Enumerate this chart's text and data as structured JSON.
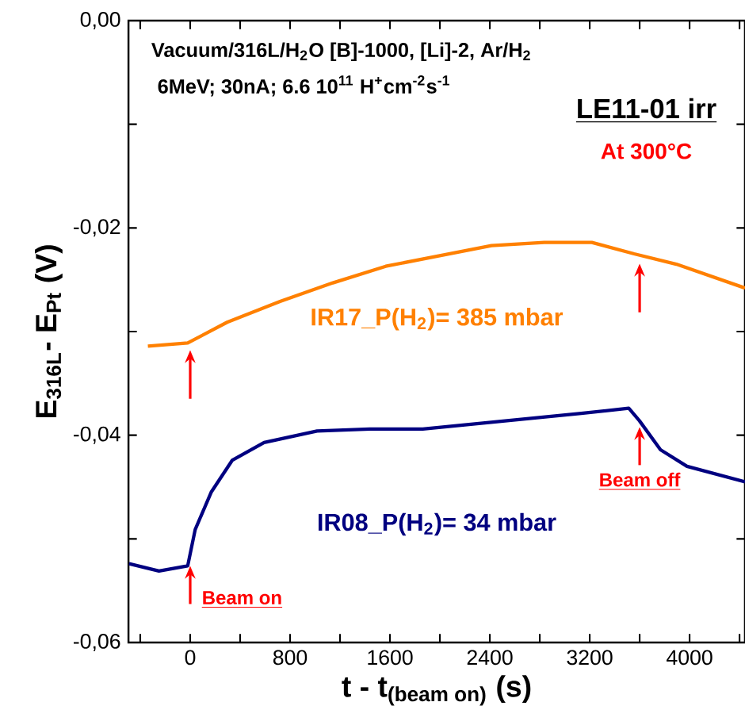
{
  "chart_data": {
    "type": "line",
    "title": "Vacuum/316L/H$_{2}$O [B]-1000, [Li]-2, Ar/H$_{2}$",
    "subtitle": "6MeV; 30nA; 6.6 10$^{11}$ H$^{+}$cm$^{-2}$s$^{-1}$",
    "xlabel": "\\text{t - t}_{\\text{(beam on)}}\\text{ (s)}",
    "ylabel": "E$_{316L}$- E$_{Pt}$ (V)",
    "annotations": [
      "LE11-01 irr",
      "At 300°C",
      {
        "text": "Beam on",
        "x": 0,
        "y": -0.052
      },
      {
        "text": "Beam off",
        "x": 3600,
        "y": -0.0386
      }
    ],
    "series": [
      {
        "name": "IR17_P(H$_{2}$)= 385 mbar",
        "color": "#ff8000",
        "x": [
          -339,
          -20,
          296,
          720,
          1143,
          1566,
          1990,
          2413,
          2836,
          3217,
          3556,
          3894,
          4444
        ],
        "values": [
          -0.0314,
          -0.0311,
          -0.0291,
          -0.0271,
          -0.0253,
          -0.0237,
          -0.0227,
          -0.0217,
          -0.0214,
          -0.0214,
          -0.0225,
          -0.0235,
          -0.0258
        ]
      },
      {
        "name": "IR08_P(H$_{2}$)= 34 mbar",
        "color": "#000080",
        "x": [
          -490,
          -250,
          -20,
          40,
          168,
          338,
          592,
          1016,
          1439,
          1863,
          2286,
          2709,
          3132,
          3513,
          3598,
          3767,
          3979,
          4444
        ],
        "values": [
          -0.0524,
          -0.0531,
          -0.0526,
          -0.0491,
          -0.0455,
          -0.0424,
          -0.0407,
          -0.0396,
          -0.0394,
          -0.0394,
          -0.0389,
          -0.0384,
          -0.0379,
          -0.0374,
          -0.0386,
          -0.0414,
          -0.043,
          -0.0445
        ]
      }
    ],
    "xlim": [
      -495,
      4444
    ],
    "ylim": [
      -0.06,
      0
    ],
    "xticks": [
      {
        "value": -400,
        "label": null
      },
      0,
      {
        "value": 400,
        "label": null
      },
      800,
      {
        "value": 1200,
        "label": null
      },
      1600,
      {
        "value": 2000,
        "label": null
      },
      2400,
      {
        "value": 2800,
        "label": null
      },
      3200,
      {
        "value": 3600,
        "label": null
      },
      4000,
      {
        "value": 4400,
        "label": null
      }
    ],
    "yticks": [
      {
        "value": -0.06,
        "label": "-0,06"
      },
      {
        "value": -0.05,
        "label": null
      },
      {
        "value": -0.04,
        "label": "-0,04"
      },
      {
        "value": -0.03,
        "label": null
      },
      {
        "value": -0.02,
        "label": "-0,02"
      },
      {
        "value": -0.01,
        "label": null
      },
      {
        "value": 0,
        "label": "0,00"
      }
    ],
    "grid": false
  }
}
